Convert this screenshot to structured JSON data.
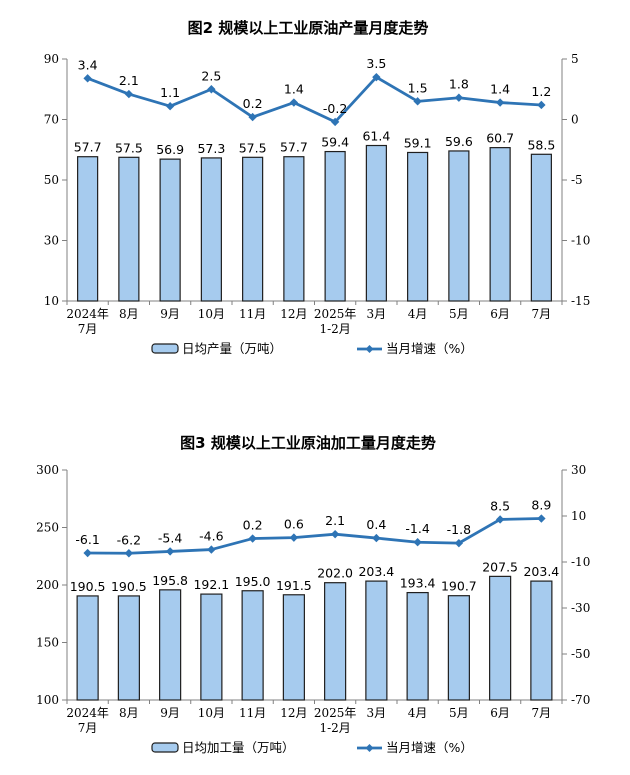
{
  "page": {
    "background": "#ffffff"
  },
  "colors": {
    "bar_fill": "#A6CBEE",
    "bar_border": "#1F1F1F",
    "line": "#2E74B5",
    "axis": "#808080",
    "text": "#000000"
  },
  "chart_data": [
    {
      "type": "bar",
      "subtype": "bar+line combo, dual y-axis",
      "title": "图2 规模以上工业原油产量月度走势",
      "categories": [
        "2024年\n7月",
        "8月",
        "9月",
        "10月",
        "11月",
        "12月",
        "2025年\n1-2月",
        "3月",
        "4月",
        "5月",
        "6月",
        "7月"
      ],
      "series": [
        {
          "name": "日均产量（万吨）",
          "type": "bar",
          "axis": "left",
          "values": [
            57.7,
            57.5,
            56.9,
            57.3,
            57.5,
            57.7,
            59.4,
            61.4,
            59.1,
            59.6,
            60.7,
            58.5
          ]
        },
        {
          "name": "当月增速（%）",
          "type": "line",
          "axis": "right",
          "values": [
            3.4,
            2.1,
            1.1,
            2.5,
            0.2,
            1.4,
            -0.2,
            3.5,
            1.5,
            1.8,
            1.4,
            1.2
          ]
        }
      ],
      "left_axis": {
        "min": 10,
        "max": 90,
        "ticks": [
          90,
          70,
          50,
          30,
          10
        ]
      },
      "right_axis": {
        "min": -15,
        "max": 5,
        "ticks": [
          5,
          0,
          -5,
          -10,
          -15
        ]
      },
      "grid": false,
      "legend_position": "bottom"
    },
    {
      "type": "bar",
      "subtype": "bar+line combo, dual y-axis",
      "title": "图3 规模以上工业原油加工量月度走势",
      "categories": [
        "2024年\n7月",
        "8月",
        "9月",
        "10月",
        "11月",
        "12月",
        "2025年\n1-2月",
        "3月",
        "4月",
        "5月",
        "6月",
        "7月"
      ],
      "series": [
        {
          "name": "日均加工量（万吨）",
          "type": "bar",
          "axis": "left",
          "values": [
            190.5,
            190.5,
            195.8,
            192.1,
            195.0,
            191.5,
            202.0,
            203.4,
            193.4,
            190.7,
            207.5,
            203.4
          ]
        },
        {
          "name": "当月增速（%）",
          "type": "line",
          "axis": "right",
          "values": [
            -6.1,
            -6.2,
            -5.4,
            -4.6,
            0.2,
            0.6,
            2.1,
            0.4,
            -1.4,
            -1.8,
            8.5,
            8.9
          ]
        }
      ],
      "left_axis": {
        "min": 100,
        "max": 300,
        "ticks": [
          300,
          250,
          200,
          150,
          100
        ]
      },
      "right_axis": {
        "min": -70,
        "max": 30,
        "ticks": [
          30,
          10,
          -10,
          -30,
          -50,
          -70
        ]
      },
      "grid": false,
      "legend_position": "bottom"
    }
  ]
}
